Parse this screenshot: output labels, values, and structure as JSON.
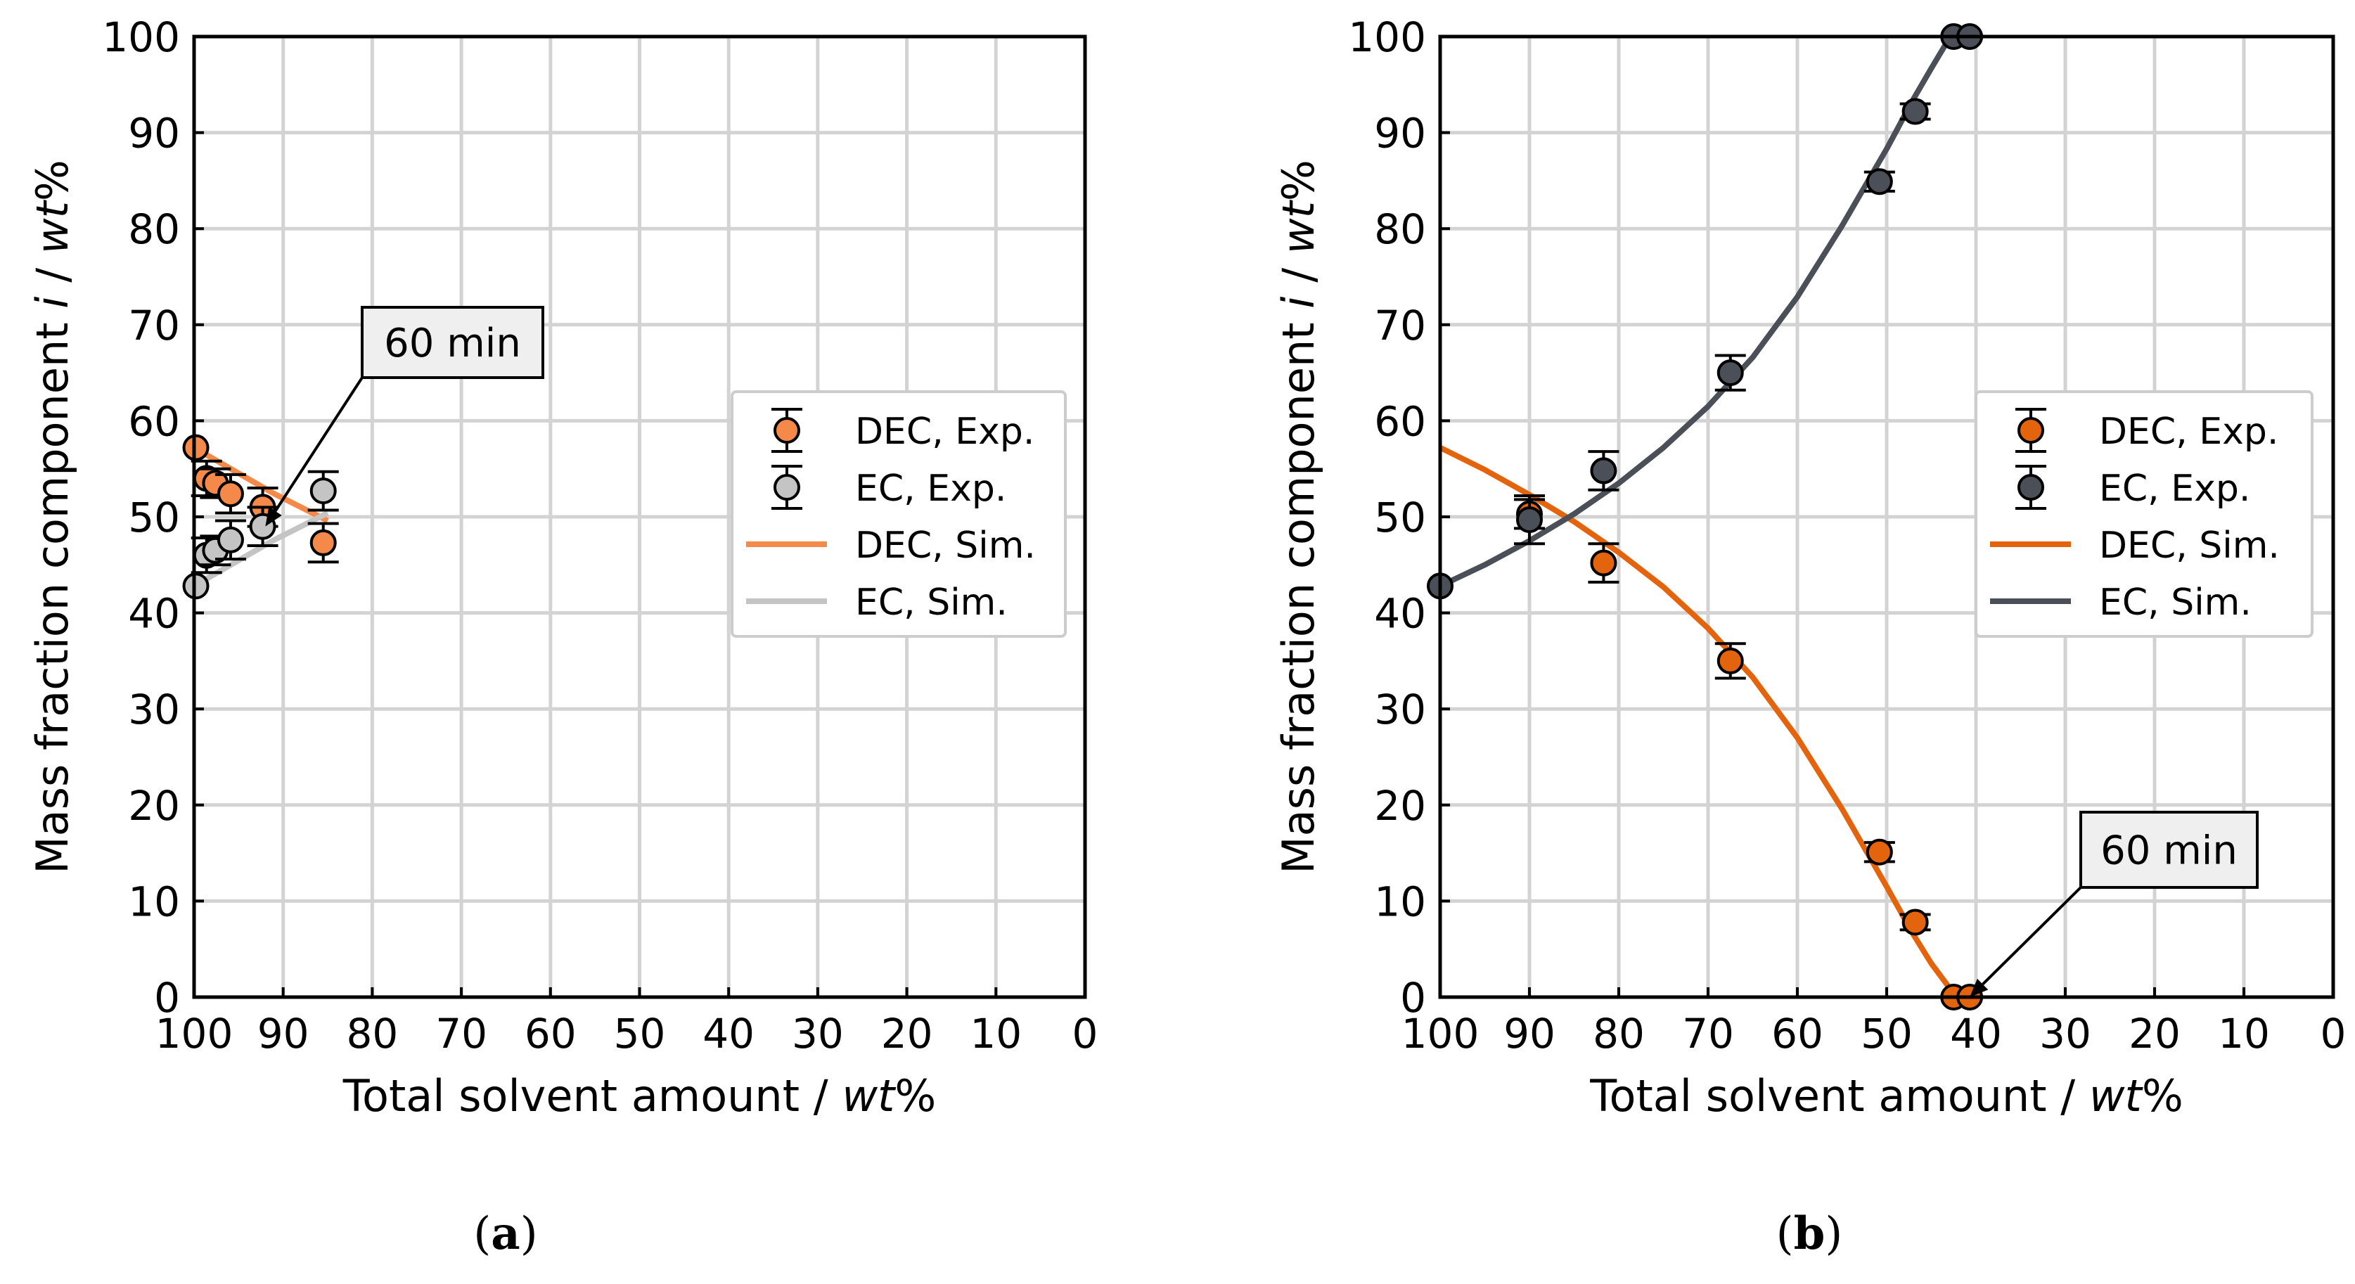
{
  "chart_data": [
    {
      "type": "scatter",
      "panel_label": "a",
      "xlabel": "Total solvent amount / ",
      "xlabel_italic": "wt",
      "xlabel_end": "%",
      "ylabel": "Mass fraction component ",
      "ylabel_i": "i",
      "ylabel_mid": " / ",
      "ylabel_wt": "wt",
      "ylabel_end": "%",
      "xlim": [
        100,
        0
      ],
      "ylim": [
        0,
        100
      ],
      "xticks": [
        100,
        90,
        80,
        70,
        60,
        50,
        40,
        30,
        20,
        10,
        0
      ],
      "yticks": [
        0,
        10,
        20,
        30,
        40,
        50,
        60,
        70,
        80,
        90,
        100
      ],
      "annotation": {
        "text": "60 min",
        "target": [
          92,
          49
        ]
      },
      "series": [
        {
          "name": "DEC, Exp.",
          "kind": "points",
          "color": "#F4894A",
          "x": [
            99.8,
            98.6,
            97.6,
            95.9,
            92.3,
            85.5
          ],
          "y": [
            57.2,
            54.0,
            53.5,
            52.4,
            51.0,
            47.3
          ],
          "err": [
            0,
            1.8,
            1.5,
            2.0,
            2.0,
            2.0
          ]
        },
        {
          "name": "EC, Exp.",
          "kind": "points",
          "color": "#C4C4C4",
          "x": [
            99.8,
            98.6,
            97.6,
            95.9,
            92.3,
            85.5
          ],
          "y": [
            42.8,
            46.0,
            46.5,
            47.6,
            49.0,
            52.7
          ],
          "err": [
            0,
            1.8,
            1.5,
            2.0,
            2.0,
            2.0
          ]
        },
        {
          "name": "DEC, Sim.",
          "kind": "line",
          "color": "#F4894A",
          "x": [
            100,
            97,
            94,
            91,
            88,
            85
          ],
          "y": [
            57.2,
            55.6,
            54.0,
            52.4,
            51.0,
            49.6
          ]
        },
        {
          "name": "EC, Sim.",
          "kind": "line",
          "color": "#C4C4C4",
          "x": [
            100,
            97,
            94,
            91,
            88,
            85
          ],
          "y": [
            42.8,
            44.4,
            46.0,
            47.6,
            49.0,
            50.4
          ]
        }
      ]
    },
    {
      "type": "scatter",
      "panel_label": "b",
      "xlabel": "Total solvent amount / ",
      "xlabel_italic": "wt",
      "xlabel_end": "%",
      "ylabel": "Mass fraction component ",
      "ylabel_i": "i",
      "ylabel_mid": " / ",
      "ylabel_wt": "wt",
      "ylabel_end": "%",
      "xlim": [
        100,
        0
      ],
      "ylim": [
        0,
        100
      ],
      "xticks": [
        100,
        90,
        80,
        70,
        60,
        50,
        40,
        30,
        20,
        10,
        0
      ],
      "yticks": [
        0,
        10,
        20,
        30,
        40,
        50,
        60,
        70,
        80,
        90,
        100
      ],
      "annotation": {
        "text": "60 min",
        "target": [
          40.7,
          0
        ]
      },
      "series": [
        {
          "name": "DEC, Exp.",
          "kind": "points",
          "color": "#E4640E",
          "x": [
            90,
            81.7,
            67.5,
            50.8,
            46.8,
            42.5,
            40.7
          ],
          "y": [
            50.3,
            45.2,
            35.0,
            15.1,
            7.8,
            0,
            0
          ],
          "err": [
            1.5,
            2.0,
            1.8,
            1.0,
            0.8,
            0,
            0
          ]
        },
        {
          "name": "EC, Exp.",
          "kind": "points",
          "color": "#4B4F57",
          "x": [
            100,
            90,
            81.7,
            67.5,
            50.8,
            46.8,
            42.5,
            40.7
          ],
          "y": [
            42.8,
            49.7,
            54.8,
            65.0,
            84.9,
            92.2,
            100,
            100
          ],
          "err": [
            0,
            2.5,
            2.0,
            1.8,
            1.0,
            0.8,
            0,
            0
          ]
        },
        {
          "name": "DEC, Sim.",
          "kind": "line",
          "color": "#E4640E",
          "x": [
            100,
            95,
            90,
            85,
            80,
            75,
            70,
            65,
            60,
            55,
            50,
            47,
            45,
            43,
            42
          ],
          "y": [
            57.2,
            54.9,
            52.3,
            49.5,
            46.3,
            42.7,
            38.4,
            33.3,
            27.0,
            19.6,
            11.5,
            6.5,
            3.5,
            1.0,
            0
          ]
        },
        {
          "name": "EC, Sim.",
          "kind": "line",
          "color": "#4B4F57",
          "x": [
            100,
            95,
            90,
            85,
            80,
            75,
            70,
            65,
            60,
            55,
            50,
            47,
            45,
            43
          ],
          "y": [
            42.8,
            45.0,
            47.5,
            50.3,
            53.5,
            57.2,
            61.5,
            66.6,
            72.9,
            80.3,
            88.3,
            93.5,
            96.7,
            99.8
          ]
        }
      ]
    }
  ]
}
